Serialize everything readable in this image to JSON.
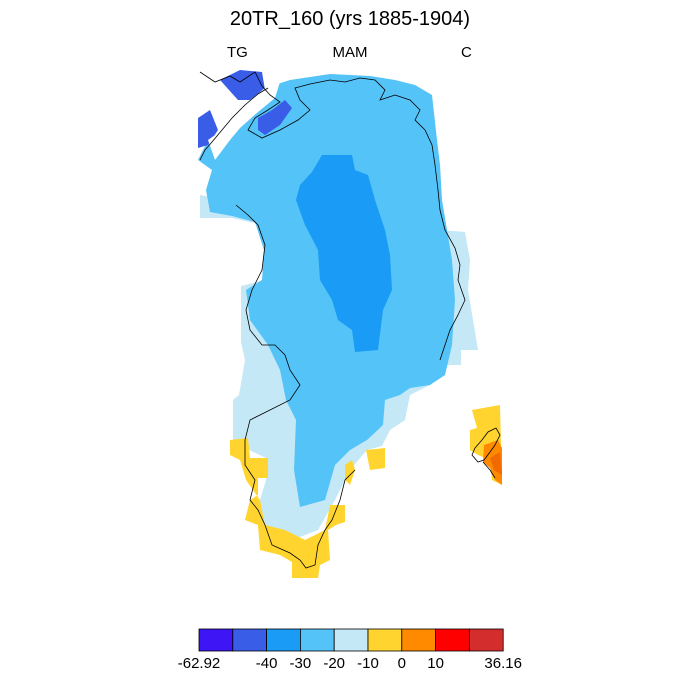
{
  "title": "20TR_160 (yrs 1885-1904)",
  "subtitle": {
    "left": "TG",
    "center": "MAM",
    "right": "C"
  },
  "colorbar": {
    "colors": [
      "#3e15f5",
      "#3a5de8",
      "#1a9bf5",
      "#54c3f7",
      "#c5e8f7",
      "#ffd42e",
      "#ff8a00",
      "#ff0000",
      "#d42d2d"
    ],
    "labels": [
      "-62.92",
      "-40",
      "-30",
      "-20",
      "-10",
      "0",
      "10",
      "36.16"
    ]
  },
  "fill_colors": {
    "very_light_blue": "#c5e8f7",
    "light_blue": "#54c3f7",
    "medium_blue": "#1a9bf5",
    "dark_blue": "#3a5de8",
    "yellow": "#ffd42e",
    "orange": "#ff8a00",
    "dark_orange": "#f06a00",
    "coastline": "#000000"
  }
}
